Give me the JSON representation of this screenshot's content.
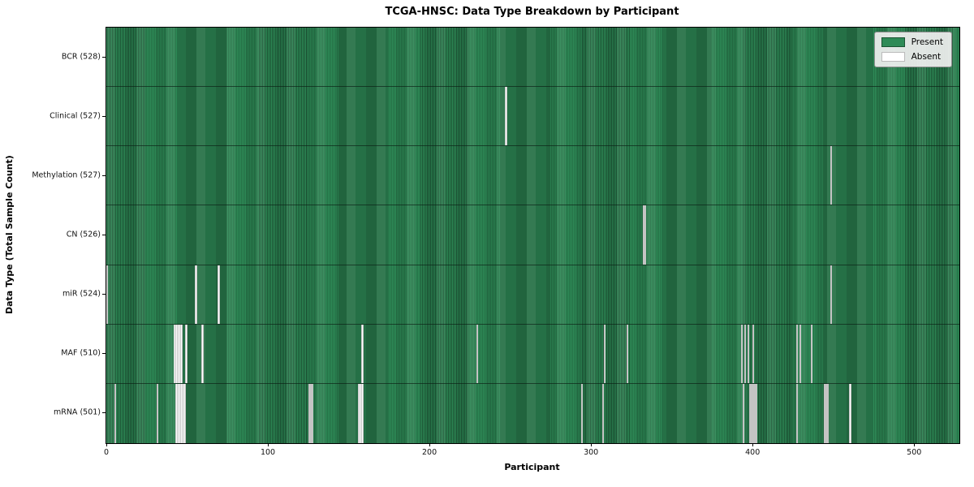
{
  "title": "TCGA-HNSC: Data Type Breakdown by Participant",
  "xlabel": "Participant",
  "ylabel": "Data Type (Total Sample Count)",
  "legend": {
    "present_label": "Present",
    "absent_label": "Absent"
  },
  "colors": {
    "present": "#2E8B57",
    "present_edge": "#1C5434",
    "absent": "#FFFFFF",
    "absent_edge": "#C4C4C4",
    "legend_bg": "#F0F0F0"
  },
  "chart_data": {
    "type": "heatmap",
    "title": "TCGA-HNSC: Data Type Breakdown by Participant",
    "xlabel": "Participant",
    "ylabel": "Data Type (Total Sample Count)",
    "legend": [
      "Present",
      "Absent"
    ],
    "legend_position": "upper right",
    "grid": false,
    "n_participants": 528,
    "x_range": [
      0,
      528
    ],
    "x_ticks": [
      0,
      100,
      200,
      300,
      400,
      500
    ],
    "rows": [
      {
        "label": "BCR (528)",
        "data_type": "BCR",
        "present_count": 528,
        "absent_count": 0,
        "absent_participants": []
      },
      {
        "label": "Clinical (527)",
        "data_type": "Clinical",
        "present_count": 527,
        "absent_count": 1,
        "absent_participants": [
          247
        ]
      },
      {
        "label": "Methylation (527)",
        "data_type": "Methylation",
        "present_count": 527,
        "absent_count": 1,
        "absent_participants": [
          448
        ]
      },
      {
        "label": "CN (526)",
        "data_type": "CN",
        "present_count": 526,
        "absent_count": 2,
        "absent_participants": [
          332,
          333
        ]
      },
      {
        "label": "miR (524)",
        "data_type": "miR",
        "present_count": 524,
        "absent_count": 4,
        "absent_participants": [
          0,
          55,
          69,
          448
        ]
      },
      {
        "label": "MAF (510)",
        "data_type": "MAF",
        "present_count": 510,
        "absent_count": 18,
        "absent_participants": [
          42,
          43,
          44,
          45,
          46,
          49,
          59,
          158,
          229,
          308,
          322,
          393,
          395,
          397,
          400,
          427,
          429,
          436
        ]
      },
      {
        "label": "mRNA (501)",
        "data_type": "mRNA",
        "present_count": 501,
        "absent_count": 27,
        "absent_participants": [
          5,
          31,
          43,
          44,
          45,
          46,
          47,
          48,
          125,
          126,
          127,
          156,
          157,
          158,
          294,
          307,
          394,
          398,
          399,
          400,
          401,
          402,
          427,
          444,
          445,
          446,
          460
        ]
      }
    ]
  }
}
